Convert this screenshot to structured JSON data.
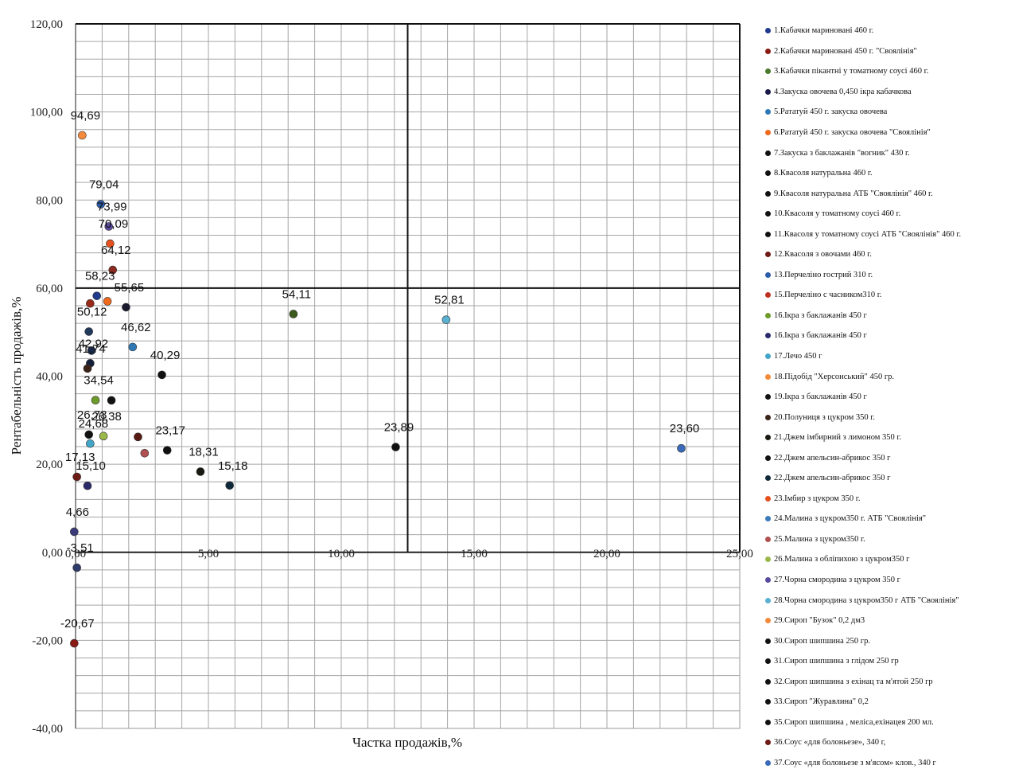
{
  "chart_data": {
    "type": "scatter",
    "title": "",
    "xlabel": "Частка продажів,%",
    "ylabel": "Рентабельність продажів,%",
    "xlim": [
      0,
      25
    ],
    "ylim": [
      -40,
      120
    ],
    "x_ticks": [
      "0,00",
      "5,00",
      "10,00",
      "15,00",
      "20,00",
      "25,00"
    ],
    "y_ticks": [
      "120,00",
      "100,00",
      "80,00",
      "60,00",
      "40,00",
      "20,00",
      "0,00",
      "-20,00",
      "-40,00"
    ],
    "quadrant_dividers": {
      "x": 12.5,
      "y": 60
    },
    "grid": true,
    "legend_position": "right",
    "points": [
      {
        "x": 0.25,
        "y": 94.69,
        "label": "94,69",
        "color": "#f58a3a"
      },
      {
        "x": 0.95,
        "y": 79.04,
        "label": "79,04",
        "color": "#2c5ca8"
      },
      {
        "x": 1.25,
        "y": 73.99,
        "label": "73,99",
        "color": "#5a4a9c"
      },
      {
        "x": 1.3,
        "y": 70.09,
        "label": "70,09",
        "color": "#e4501e"
      },
      {
        "x": 1.4,
        "y": 64.12,
        "label": "64,12",
        "color": "#8a2a20"
      },
      {
        "x": 0.8,
        "y": 58.23,
        "label": "58,23",
        "color": "#1f3a8a"
      },
      {
        "x": 1.9,
        "y": 55.65,
        "label": "55,65",
        "color": "#1a1a2e"
      },
      {
        "x": 0.5,
        "y": 50.12,
        "label": "50,12",
        "color": "#213a5c"
      },
      {
        "x": 2.15,
        "y": 46.62,
        "label": "46,62",
        "color": "#2e78b5"
      },
      {
        "x": 0.55,
        "y": 42.92,
        "label": "42,92",
        "color": "#14203a"
      },
      {
        "x": 0.45,
        "y": 41.74,
        "label": "41,74",
        "color": "#3a2318"
      },
      {
        "x": 3.25,
        "y": 40.29,
        "label": "40,29",
        "color": "#111111"
      },
      {
        "x": 0.75,
        "y": 34.54,
        "label": "34,54",
        "color": "#6e9a2a"
      },
      {
        "x": 0.5,
        "y": 26.73,
        "label": "26,73",
        "color": "#111111"
      },
      {
        "x": 1.05,
        "y": 26.38,
        "label": "26,38",
        "color": "#9ab84a"
      },
      {
        "x": 0.55,
        "y": 24.68,
        "label": "24,68",
        "color": "#42a6c8"
      },
      {
        "x": 3.45,
        "y": 23.17,
        "label": "23,17",
        "color": "#111111"
      },
      {
        "x": 4.7,
        "y": 18.31,
        "label": "18,31",
        "color": "#1a1a12"
      },
      {
        "x": 0.05,
        "y": 17.13,
        "label": "17,13",
        "color": "#6b1a14"
      },
      {
        "x": 0.45,
        "y": 15.1,
        "label": "15,10",
        "color": "#2a2a6a"
      },
      {
        "x": 5.8,
        "y": 15.18,
        "label": "15,18",
        "color": "#0f2a3a"
      },
      {
        "x": -0.05,
        "y": 4.66,
        "label": "4,66",
        "color": "#3a3a7a"
      },
      {
        "x": 0.05,
        "y": -3.51,
        "label": "-3,51",
        "color": "#2e3a68"
      },
      {
        "x": -0.05,
        "y": -20.67,
        "label": "-20,67",
        "color": "#8a1a14"
      },
      {
        "x": 8.2,
        "y": 54.11,
        "label": "54,11",
        "color": "#3a5a1e"
      },
      {
        "x": 12.05,
        "y": 23.89,
        "label": "23,89",
        "color": "#111111"
      },
      {
        "x": 13.95,
        "y": 52.81,
        "label": "52,81",
        "color": "#5ab0d0"
      },
      {
        "x": 22.8,
        "y": 23.6,
        "label": "23,60",
        "color": "#3a6ab8"
      }
    ],
    "unlabeled_points": [
      {
        "x": 1.2,
        "y": 57.0,
        "color": "#f06a1e"
      },
      {
        "x": 0.55,
        "y": 56.5,
        "color": "#9a2a18"
      },
      {
        "x": 0.6,
        "y": 45.8,
        "color": "#1a2a4a"
      },
      {
        "x": 1.35,
        "y": 34.5,
        "color": "#111111"
      },
      {
        "x": 2.35,
        "y": 26.2,
        "color": "#5a1a14"
      },
      {
        "x": 2.6,
        "y": 22.5,
        "color": "#b05050"
      }
    ],
    "legend": [
      {
        "label": "1.Кабачки мариновані 460 г.",
        "color": "#1f3a8a"
      },
      {
        "label": "2.Кабачки мариновані 450 г. \"Своялінія\"",
        "color": "#8a1a14"
      },
      {
        "label": "3.Кабачки пікантні у томатному соусі 460 г.",
        "color": "#4a7a2a"
      },
      {
        "label": "4.Закуска овочева 0,450 ікра кабачкова",
        "color": "#1a1a4a"
      },
      {
        "label": "5.Рататуй 450 г. закуска овочева",
        "color": "#2e78b5"
      },
      {
        "label": "6.Рататуй 450 г. закуска овочева \"Своялінія\"",
        "color": "#f06a1e"
      },
      {
        "label": "7.Закуска з баклажанів \"вогник\" 430 г.",
        "color": "#111111"
      },
      {
        "label": "8.Квасоля натуральна 460 г.",
        "color": "#111111"
      },
      {
        "label": "9.Квасоля натуральна АТБ \"Своялінія\" 460 г.",
        "color": "#111111"
      },
      {
        "label": "10.Квасоля у томатному соусі 460 г.",
        "color": "#111111"
      },
      {
        "label": "11.Квасоля у томатному соусі АТБ \"Своялінія\" 460 г.",
        "color": "#111111"
      },
      {
        "label": "12.Квасоля з овочами 460 г.",
        "color": "#6b1a14"
      },
      {
        "label": "13.Перчеліно гострий 310 г.",
        "color": "#2c5ca8"
      },
      {
        "label": "15.Перчеліно с часником310 г.",
        "color": "#c03020"
      },
      {
        "label": "16.Ікра з баклажанів 450 г",
        "color": "#6e9a2a"
      },
      {
        "label": "16.Ікра з баклажанів 450 г",
        "color": "#2a2a6a"
      },
      {
        "label": "17.Лечо 450 г",
        "color": "#42a6c8"
      },
      {
        "label": "18.Підобід \"Херсонський\" 450 гр.",
        "color": "#f58a3a"
      },
      {
        "label": "19.Ікра з баклажанів 450 г",
        "color": "#111111"
      },
      {
        "label": "20.Полуниця з цукром 350 г.",
        "color": "#3a2318"
      },
      {
        "label": "21.Джем імбирний з лимоном 350 г.",
        "color": "#1a1a12"
      },
      {
        "label": "22.Джем апельсин-абрикос 350 г",
        "color": "#111111"
      },
      {
        "label": "22.Джем апельсин-абрикос 350 г",
        "color": "#0f2a3a"
      },
      {
        "label": "23.Імбир з цукром 350 г.",
        "color": "#e4501e"
      },
      {
        "label": "24.Малина з цукром350 г. АТБ \"Своялінія\"",
        "color": "#3a7ab8"
      },
      {
        "label": "25.Малина з цукром350 г.",
        "color": "#b05050"
      },
      {
        "label": "26.Малина з обліпихою з цукром350 г",
        "color": "#9ab84a"
      },
      {
        "label": "27.Чорна смородина з цукром 350 г",
        "color": "#5a4a9c"
      },
      {
        "label": "28.Чорна смородина з цукром350 г АТБ \"Своялінія\"",
        "color": "#5ab0d0"
      },
      {
        "label": "29.Сироп \"Бузок\" 0,2 дм3",
        "color": "#f58a3a"
      },
      {
        "label": "30.Сироп шипшина 250 гр.",
        "color": "#111111"
      },
      {
        "label": "31.Сироп шипшина з глідом 250 гр",
        "color": "#111111"
      },
      {
        "label": "32.Сироп шипшина з ехінац та м'ятой 250 гр",
        "color": "#111111"
      },
      {
        "label": "33.Сироп \"Журавлина\" 0,2",
        "color": "#111111"
      },
      {
        "label": "35.Сироп шипшина , меліса,ехінацея 200 мл.",
        "color": "#111111"
      },
      {
        "label": "36.Соус «для болоньезе», 340 г,",
        "color": "#6b1a14"
      },
      {
        "label": "37.Соус «для болоньезе з м'ясом» клов., 340 г",
        "color": "#3a6ab8"
      }
    ]
  }
}
